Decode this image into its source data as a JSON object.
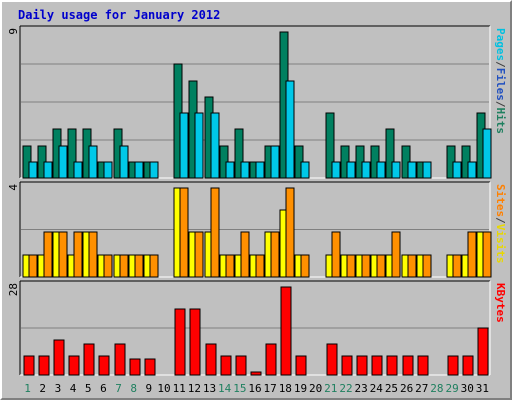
{
  "chart_data": {
    "type": "bar",
    "title": "Daily usage for January 2012",
    "categories": [
      "1",
      "2",
      "3",
      "4",
      "5",
      "6",
      "7",
      "8",
      "9",
      "10",
      "11",
      "12",
      "13",
      "14",
      "15",
      "16",
      "17",
      "18",
      "19",
      "20",
      "21",
      "22",
      "23",
      "24",
      "25",
      "26",
      "27",
      "28",
      "29",
      "30",
      "31"
    ],
    "weekend_days": [
      "1",
      "7",
      "8",
      "14",
      "15",
      "21",
      "22",
      "28",
      "29"
    ],
    "panels": [
      {
        "axis_max_label": "9",
        "ymax": 9,
        "legend": [
          {
            "text": "Pages",
            "color": "#00c0e0"
          },
          {
            "text": "/",
            "color": "#404040"
          },
          {
            "text": "Files",
            "color": "#2050c0"
          },
          {
            "text": "/",
            "color": "#404040"
          },
          {
            "text": "Hits",
            "color": "#208060"
          }
        ],
        "series": [
          {
            "name": "Hits",
            "color": "#008060",
            "values": [
              2,
              2,
              3,
              3,
              3,
              1,
              3,
              1,
              1,
              0,
              7,
              6,
              5,
              2,
              3,
              1,
              2,
              9,
              2,
              0,
              4,
              2,
              2,
              2,
              3,
              2,
              1,
              0,
              2,
              2,
              4
            ]
          },
          {
            "name": "Files",
            "color": "#00c8e8",
            "values": [
              1,
              1,
              2,
              1,
              2,
              1,
              2,
              1,
              1,
              0,
              4,
              4,
              4,
              1,
              1,
              1,
              2,
              6,
              1,
              0,
              1,
              1,
              1,
              1,
              1,
              1,
              1,
              0,
              1,
              1,
              3
            ]
          }
        ]
      },
      {
        "axis_max_label": "4",
        "ymax": 4,
        "legend": [
          {
            "text": "Sites",
            "color": "#ff8000"
          },
          {
            "text": "/",
            "color": "#404040"
          },
          {
            "text": "Visits",
            "color": "#e8d800"
          }
        ],
        "series": [
          {
            "name": "Visits",
            "color": "#ffff00",
            "values": [
              1,
              1,
              2,
              1,
              2,
              1,
              1,
              1,
              1,
              0,
              4,
              2,
              2,
              1,
              1,
              1,
              2,
              3,
              1,
              0,
              1,
              1,
              1,
              1,
              1,
              1,
              1,
              0,
              1,
              1,
              2
            ]
          },
          {
            "name": "Sites",
            "color": "#ff9000",
            "values": [
              1,
              2,
              2,
              2,
              2,
              1,
              1,
              1,
              1,
              0,
              4,
              2,
              4,
              1,
              2,
              1,
              2,
              4,
              1,
              0,
              2,
              1,
              1,
              1,
              2,
              1,
              1,
              0,
              1,
              2,
              2
            ]
          }
        ]
      },
      {
        "axis_max_label": "28",
        "ymax": 28,
        "legend": [
          {
            "text": "KBytes",
            "color": "#ff0000"
          }
        ],
        "series": [
          {
            "name": "KBytes",
            "color": "#ff0000",
            "values": [
              6,
              6,
              11,
              6,
              10,
              6,
              10,
              5,
              5,
              0,
              21,
              21,
              10,
              6,
              6,
              1,
              10,
              30,
              6,
              0,
              10,
              6,
              6,
              6,
              6,
              6,
              6,
              0,
              6,
              6,
              15
            ]
          }
        ]
      }
    ]
  }
}
